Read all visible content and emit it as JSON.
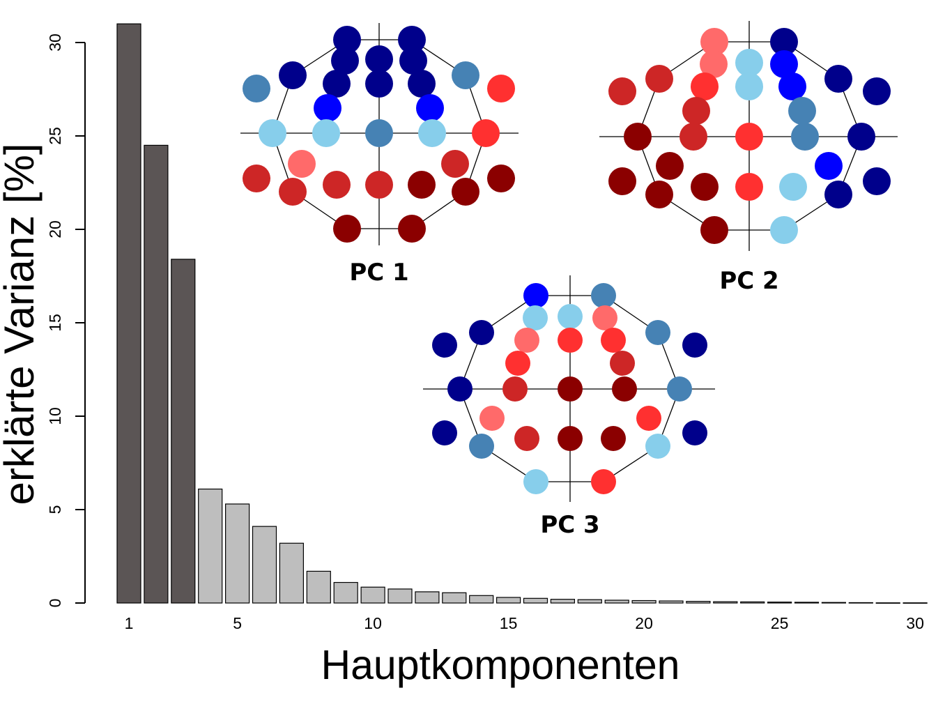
{
  "chart_data": {
    "type": "bar",
    "title": "",
    "xlabel": "Hauptkomponenten",
    "ylabel": "erklärte Varianz [%]",
    "ylim": [
      0,
      31
    ],
    "y_ticks": [
      0,
      5,
      10,
      15,
      20,
      25,
      30
    ],
    "x_ticks": [
      1,
      5,
      10,
      15,
      20,
      25,
      30
    ],
    "grid": false,
    "categories": [
      1,
      2,
      3,
      4,
      5,
      6,
      7,
      8,
      9,
      10,
      11,
      12,
      13,
      14,
      15,
      16,
      17,
      18,
      19,
      20,
      21,
      22,
      23,
      24,
      25,
      26,
      27,
      28,
      29,
      30
    ],
    "values": [
      31.0,
      24.5,
      18.4,
      6.1,
      5.3,
      4.1,
      3.2,
      1.7,
      1.1,
      0.85,
      0.75,
      0.6,
      0.55,
      0.4,
      0.3,
      0.25,
      0.2,
      0.18,
      0.15,
      0.13,
      0.11,
      0.09,
      0.07,
      0.06,
      0.05,
      0.04,
      0.03,
      0.02,
      0.01,
      0.01
    ],
    "bar_colors": {
      "highlighted": "#5b5555",
      "normal": "#bebebe",
      "outline": "#000000"
    },
    "highlighted_count": 3,
    "insets": [
      {
        "label": "PC 1"
      },
      {
        "label": "PC 2"
      },
      {
        "label": "PC 3"
      }
    ],
    "topomap_colors": {
      "dark_blue": "#00008b",
      "blue": "#0000ff",
      "steel_blue": "#4682b4",
      "light_blue": "#87ceeb",
      "light_red": "#ff6a6a",
      "red": "#ff3030",
      "medium_red": "#cd2626",
      "dark_red": "#8b0000"
    }
  }
}
